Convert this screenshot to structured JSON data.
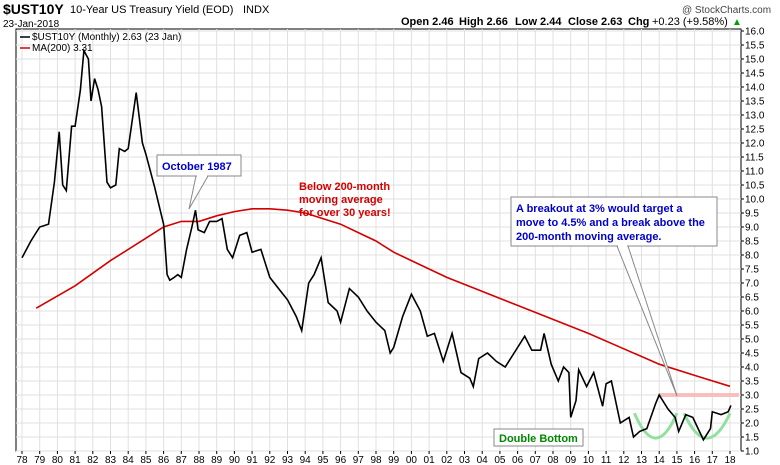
{
  "header": {
    "symbol": "$UST10Y",
    "description": "10-Year US Treasury Yield (EOD)",
    "exchange": "INDX",
    "date": "23-Jan-2018",
    "open": "Open 2.46",
    "high": "High 2.66",
    "low": "Low 2.44",
    "close": "Close 2.63",
    "change_label": "Chg",
    "change_value": "+0.23 (+9.58%)",
    "change_arrow": "▲",
    "copyright": "@ StockCharts.com"
  },
  "legend": {
    "price_label": "$UST10Y (Monthly) 2.63 (23 Jan)",
    "ma_label": "MA(200) 3.31"
  },
  "annotations": {
    "october": "October 1987",
    "below_ma": [
      "Below 200-month",
      "moving average",
      "for over 30 years!"
    ],
    "breakout": [
      "A breakout at 3% would  target a",
      "move to 4.5% and a break above the",
      "200-month moving average."
    ],
    "double_bottom": "Double Bottom"
  },
  "colors": {
    "price": "#000000",
    "ma": "#d40000",
    "blue_text": "#0000cc",
    "red_text": "#d40000",
    "green_text": "#008800",
    "cup": "#90e0a0",
    "resistance": "#f08888",
    "grid": "#e0e0e0"
  },
  "chart_data": {
    "type": "line",
    "xlim": [
      1978,
      2018.6
    ],
    "ylim": [
      1.0,
      16.2
    ],
    "x_ticks": [
      "78",
      "79",
      "80",
      "81",
      "82",
      "83",
      "84",
      "85",
      "86",
      "87",
      "88",
      "89",
      "90",
      "91",
      "92",
      "93",
      "94",
      "95",
      "96",
      "97",
      "98",
      "99",
      "00",
      "01",
      "02",
      "03",
      "04",
      "05",
      "06",
      "07",
      "08",
      "09",
      "10",
      "11",
      "12",
      "13",
      "14",
      "15",
      "16",
      "17",
      "18"
    ],
    "y_ticks": [
      "1.0",
      "1.5",
      "2.0",
      "2.5",
      "3.0",
      "3.5",
      "4.0",
      "4.5",
      "5.0",
      "5.5",
      "6.0",
      "6.5",
      "7.0",
      "7.5",
      "8.0",
      "8.5",
      "9.0",
      "9.5",
      "10.0",
      "10.5",
      "11.0",
      "11.5",
      "12.0",
      "12.5",
      "13.0",
      "13.5",
      "14.0",
      "14.5",
      "15.0",
      "15.5",
      "16.0"
    ],
    "series": [
      {
        "name": "$UST10Y (Monthly)",
        "x": [
          1978.0,
          1978.5,
          1979.0,
          1979.5,
          1979.83,
          1980.1,
          1980.3,
          1980.5,
          1980.8,
          1981.0,
          1981.3,
          1981.5,
          1981.75,
          1981.9,
          1982.1,
          1982.3,
          1982.5,
          1982.8,
          1983.0,
          1983.3,
          1983.5,
          1983.8,
          1984.0,
          1984.45,
          1984.8,
          1985.0,
          1985.5,
          1986.0,
          1986.2,
          1986.35,
          1986.6,
          1986.8,
          1987.0,
          1987.3,
          1987.6,
          1987.8,
          1987.95,
          1988.3,
          1988.6,
          1989.0,
          1989.3,
          1989.6,
          1989.9,
          1990.3,
          1990.7,
          1991.0,
          1991.5,
          1992.0,
          1992.5,
          1993.0,
          1993.5,
          1993.8,
          1994.2,
          1994.5,
          1994.9,
          1995.3,
          1995.8,
          1996.0,
          1996.5,
          1997.0,
          1997.5,
          1998.0,
          1998.5,
          1998.8,
          1999.0,
          1999.5,
          2000.0,
          2000.5,
          2000.9,
          2001.3,
          2001.8,
          2002.3,
          2002.8,
          2003.3,
          2003.5,
          2003.8,
          2004.3,
          2004.8,
          2005.3,
          2005.8,
          2006.4,
          2006.8,
          2007.3,
          2007.5,
          2007.9,
          2008.3,
          2008.6,
          2008.9,
          2009.0,
          2009.3,
          2009.45,
          2009.9,
          2010.3,
          2010.8,
          2011.0,
          2011.3,
          2011.8,
          2012.3,
          2012.55,
          2012.9,
          2013.3,
          2013.8,
          2014.0,
          2014.5,
          2014.9,
          2015.1,
          2015.5,
          2015.9,
          2016.2,
          2016.5,
          2016.9,
          2017.0,
          2017.5,
          2017.9,
          2018.05
        ],
        "values": [
          7.9,
          8.5,
          9.0,
          9.1,
          10.6,
          12.4,
          10.5,
          10.3,
          12.6,
          12.6,
          13.9,
          15.3,
          15.0,
          13.5,
          14.3,
          13.9,
          13.3,
          10.6,
          10.4,
          10.5,
          11.8,
          11.7,
          11.8,
          13.8,
          12.0,
          11.6,
          10.4,
          9.1,
          7.3,
          7.1,
          7.2,
          7.3,
          7.2,
          8.2,
          9.0,
          9.6,
          8.9,
          8.8,
          9.2,
          9.2,
          9.3,
          8.2,
          7.9,
          8.7,
          8.8,
          8.1,
          8.2,
          7.2,
          6.8,
          6.4,
          5.8,
          5.3,
          7.0,
          7.3,
          7.9,
          6.3,
          6.0,
          5.6,
          6.8,
          6.5,
          6.0,
          5.6,
          5.3,
          4.5,
          4.7,
          5.8,
          6.6,
          6.0,
          5.1,
          5.2,
          4.2,
          5.2,
          3.8,
          3.6,
          3.3,
          4.3,
          4.5,
          4.2,
          4.0,
          4.5,
          5.1,
          4.6,
          4.6,
          5.2,
          4.1,
          3.5,
          4.0,
          3.8,
          2.2,
          2.8,
          3.9,
          3.3,
          3.8,
          2.6,
          3.4,
          3.5,
          2.0,
          2.2,
          1.5,
          1.7,
          1.8,
          2.7,
          3.0,
          2.5,
          2.2,
          1.7,
          2.3,
          2.2,
          1.8,
          1.4,
          1.8,
          2.4,
          2.3,
          2.4,
          2.63
        ]
      },
      {
        "name": "MA(200)",
        "x": [
          1978.8,
          1981.0,
          1983.0,
          1985.0,
          1986.0,
          1987.0,
          1988.0,
          1989.0,
          1990.0,
          1991.0,
          1992.0,
          1993.0,
          1994.0,
          1995.0,
          1996.0,
          1997.0,
          1998.0,
          1999.0,
          2000.0,
          2002.0,
          2004.0,
          2006.0,
          2008.0,
          2010.0,
          2012.0,
          2014.0,
          2016.0,
          2018.0
        ],
        "values": [
          6.1,
          6.9,
          7.8,
          8.6,
          9.0,
          9.2,
          9.2,
          9.4,
          9.55,
          9.65,
          9.65,
          9.6,
          9.5,
          9.3,
          9.1,
          8.8,
          8.5,
          8.1,
          7.8,
          7.2,
          6.7,
          6.2,
          5.7,
          5.2,
          4.65,
          4.1,
          3.7,
          3.31
        ]
      }
    ]
  }
}
